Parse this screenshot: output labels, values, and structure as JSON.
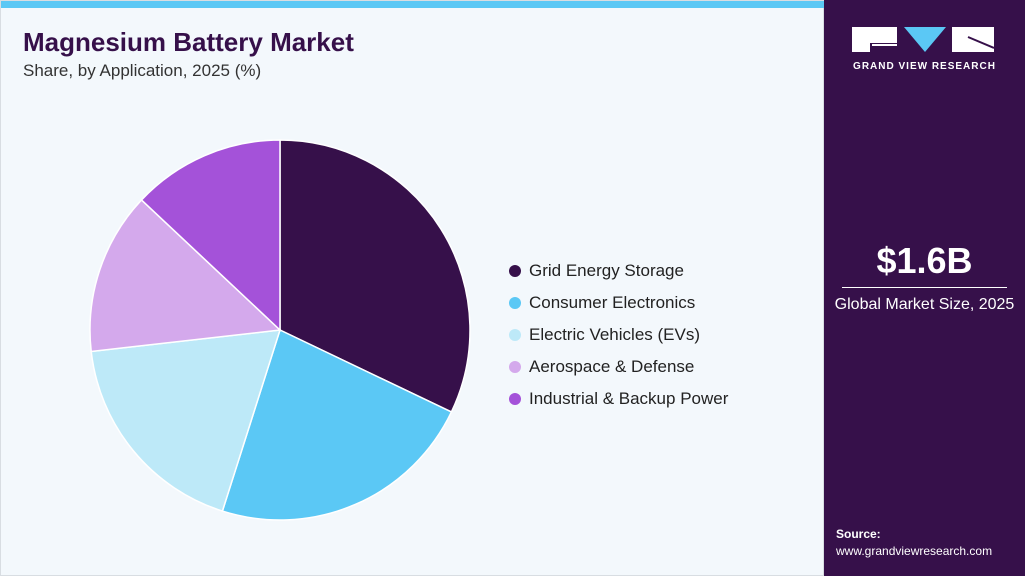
{
  "header": {
    "title": "Magnesium Battery Market",
    "subtitle": "Share, by Application, 2025 (%)"
  },
  "chart_data": {
    "type": "pie",
    "title": "Magnesium Battery Market",
    "subtitle": "Share, by Application, 2025 (%)",
    "categories": [
      "Grid Energy Storage",
      "Consumer Electronics",
      "Electric Vehicles (EVs)",
      "Aerospace & Defense",
      "Industrial & Backup Power"
    ],
    "values": [
      32.1,
      22.8,
      18.3,
      13.8,
      13.0
    ],
    "colors": [
      "#36104a",
      "#5bc8f5",
      "#bde9f8",
      "#d4a9ec",
      "#a452d9"
    ],
    "legend_position": "right"
  },
  "sidebar": {
    "logo_text": "GRAND VIEW RESEARCH",
    "market_size": "$1.6B",
    "market_label": "Global Market Size, 2025",
    "source_label": "Source:",
    "source_url": "www.grandviewresearch.com"
  }
}
